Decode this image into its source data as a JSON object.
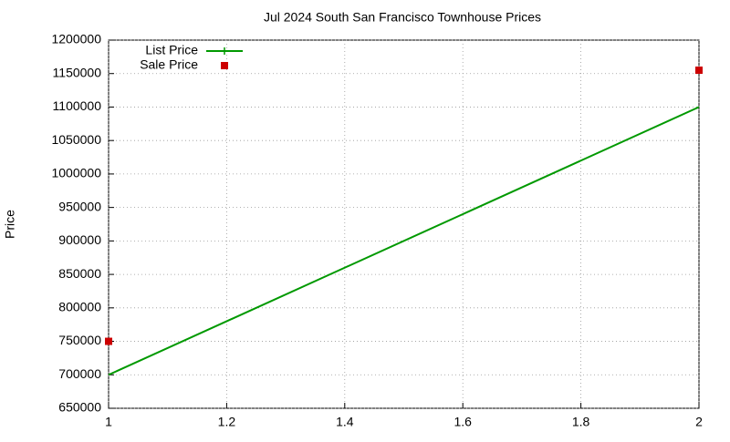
{
  "chart_data": {
    "type": "line",
    "title": "Jul 2024 South San Francisco Townhouse Prices",
    "y_label": "Price",
    "x": [
      1,
      2
    ],
    "series": [
      {
        "name": "List Price",
        "color": "#009900",
        "style": "line",
        "values": [
          700000,
          1100000
        ]
      },
      {
        "name": "Sale Price",
        "color": "#cc0000",
        "style": "points",
        "values": [
          750000,
          1155000
        ]
      }
    ],
    "xlim": [
      1,
      2
    ],
    "xticks": [
      1,
      1.2,
      1.4,
      1.6,
      1.8,
      2
    ],
    "ylim": [
      650000,
      1200000
    ],
    "yticks": [
      650000,
      700000,
      750000,
      800000,
      850000,
      900000,
      950000,
      1000000,
      1050000,
      1100000,
      1150000,
      1200000
    ],
    "grid": true,
    "legend": "top-left"
  }
}
